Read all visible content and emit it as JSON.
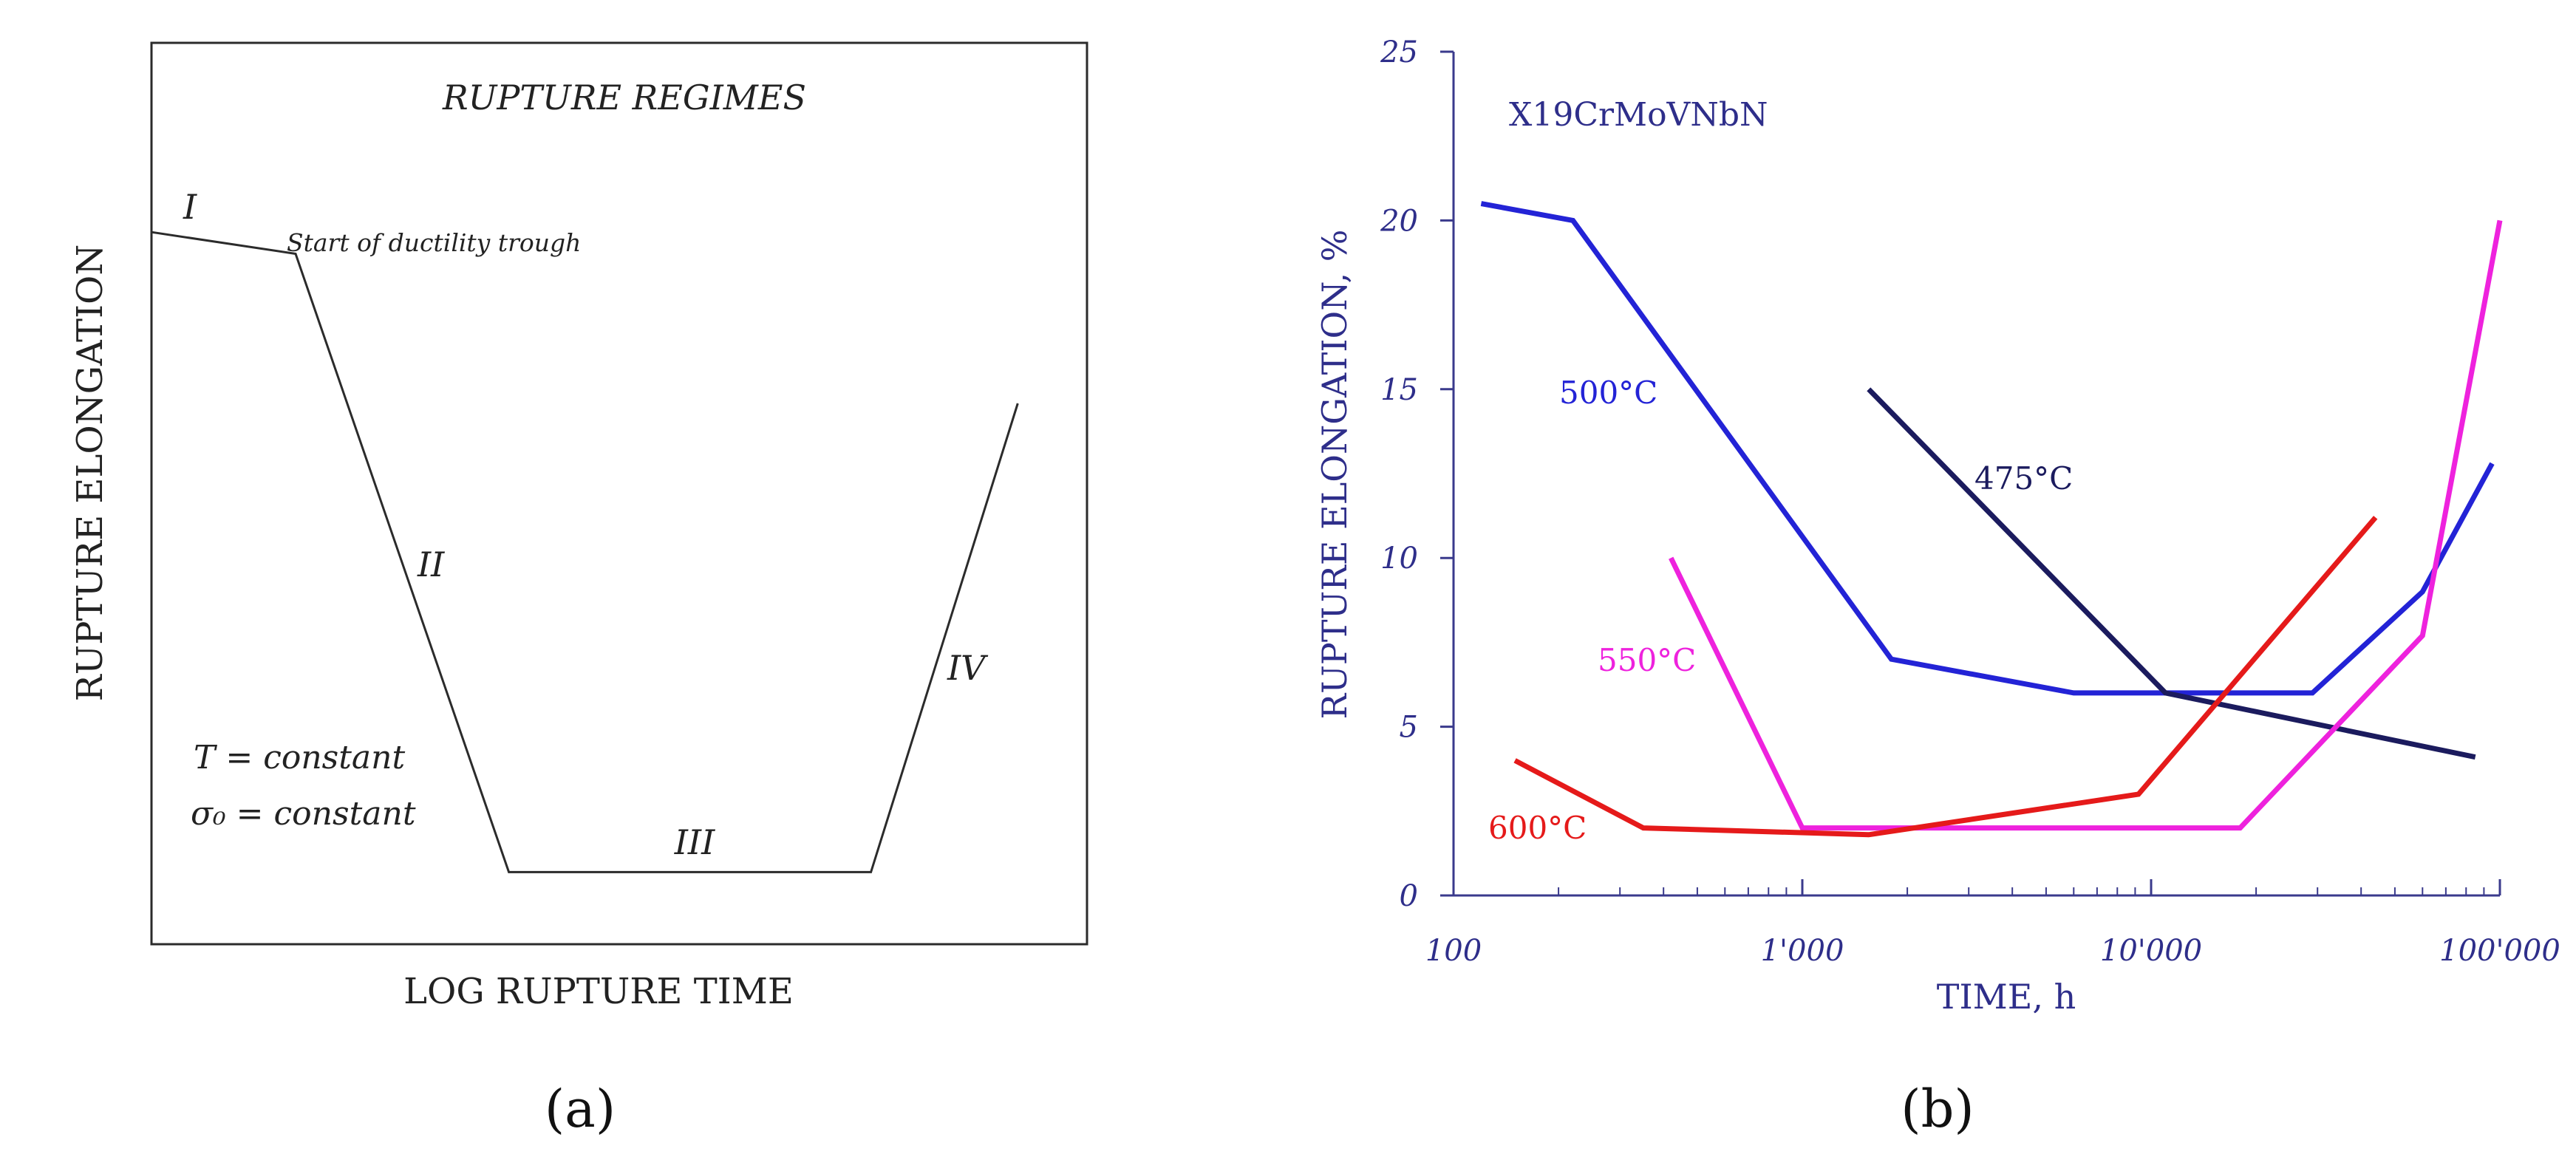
{
  "colors": {
    "panel_a_line": "#2b2b2b",
    "axis_b": "#3a3a8c",
    "text_b": "#2e2e8a"
  },
  "panel_a": {
    "title": "RUPTURE REGIMES",
    "ylabel": "RUPTURE ELONGATION",
    "xlabel": "LOG RUPTURE TIME",
    "regime_labels": [
      "I",
      "II",
      "III",
      "IV"
    ],
    "annotation": "Start of ductility trough",
    "condition_T": "T = constant",
    "condition_sigma": "σ₀ = constant",
    "caption": "(a)"
  },
  "panel_b": {
    "caption": "(b)"
  },
  "chart_data": [
    {
      "type": "line",
      "title": "RUPTURE REGIMES",
      "xlabel": "LOG RUPTURE TIME",
      "ylabel": "RUPTURE ELONGATION",
      "schematic": true,
      "xlim": [
        0,
        100
      ],
      "ylim": [
        0,
        100
      ],
      "series": [
        {
          "name": "regimes",
          "x": [
            0,
            15.4,
            38.2,
            76.9,
            92.6
          ],
          "y": [
            79,
            76.6,
            8,
            8,
            60
          ]
        }
      ]
    },
    {
      "type": "line",
      "title": "X19CrMoVNbN",
      "xlabel": "TIME, h",
      "ylabel": "RUPTURE ELONGATION, %",
      "xscale": "log",
      "xlim": [
        100,
        100000
      ],
      "ylim": [
        0,
        25
      ],
      "x_ticks": [
        100,
        1000,
        10000,
        100000
      ],
      "x_tick_labels": [
        "100",
        "1'000",
        "10'000",
        "100'000"
      ],
      "y_ticks": [
        0,
        5,
        10,
        15,
        20,
        25
      ],
      "y_tick_labels": [
        "0",
        "5",
        "10",
        "15",
        "20",
        "25"
      ],
      "series": [
        {
          "name": "500°C",
          "color": "#2323d6",
          "x": [
            120,
            220,
            1800,
            6000,
            29000,
            60000,
            95000
          ],
          "y": [
            20.5,
            20,
            7,
            6,
            6,
            9,
            12.8
          ]
        },
        {
          "name": "475°C",
          "color": "#1b1b5e",
          "x": [
            1550,
            11000,
            85000
          ],
          "y": [
            15,
            6,
            4.1
          ]
        },
        {
          "name": "550°C",
          "color": "#ee22dd",
          "x": [
            420,
            1000,
            18000,
            60000,
            100000
          ],
          "y": [
            10,
            2,
            2,
            7.7,
            20
          ]
        },
        {
          "name": "600°C",
          "color": "#e51a1a",
          "x": [
            150,
            350,
            1550,
            9200,
            44000
          ],
          "y": [
            4,
            2,
            1.8,
            3,
            11.2
          ]
        }
      ]
    }
  ]
}
